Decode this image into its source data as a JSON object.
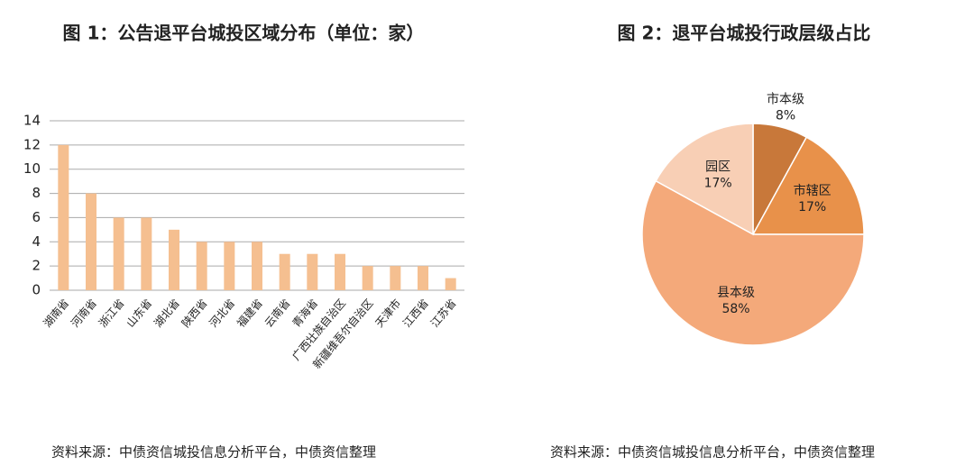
{
  "chart_data": [
    {
      "type": "bar",
      "title": "图 1：公告退平台城投区域分布（单位：家）",
      "categories": [
        "湖南省",
        "河南省",
        "浙江省",
        "山东省",
        "湖北省",
        "陕西省",
        "河北省",
        "福建省",
        "云南省",
        "青海省",
        "广西壮族自治区",
        "新疆维吾尔自治区",
        "天津市",
        "江西省",
        "江苏省"
      ],
      "values": [
        12,
        8,
        6,
        6,
        5,
        4,
        4,
        4,
        3,
        3,
        3,
        2,
        2,
        2,
        1
      ],
      "color": "#f5bf90",
      "ylim": [
        0,
        14
      ],
      "yticks": [
        0,
        2,
        4,
        6,
        8,
        10,
        12,
        14
      ],
      "grid": true,
      "source": "资料来源：中债资信城投信息分析平台，中债资信整理"
    },
    {
      "type": "pie",
      "title": "图 2：退平台城投行政层级占比",
      "categories": [
        "市本级",
        "市辖区",
        "县本级",
        "园区"
      ],
      "values": [
        8,
        17,
        58,
        17
      ],
      "value_labels": [
        "8%",
        "17%",
        "58%",
        "17%"
      ],
      "colors": [
        "#c8783a",
        "#e8914a",
        "#f4a97a",
        "#f8cfb5"
      ],
      "source": "资料来源：中债资信城投信息分析平台，中债资信整理"
    }
  ]
}
